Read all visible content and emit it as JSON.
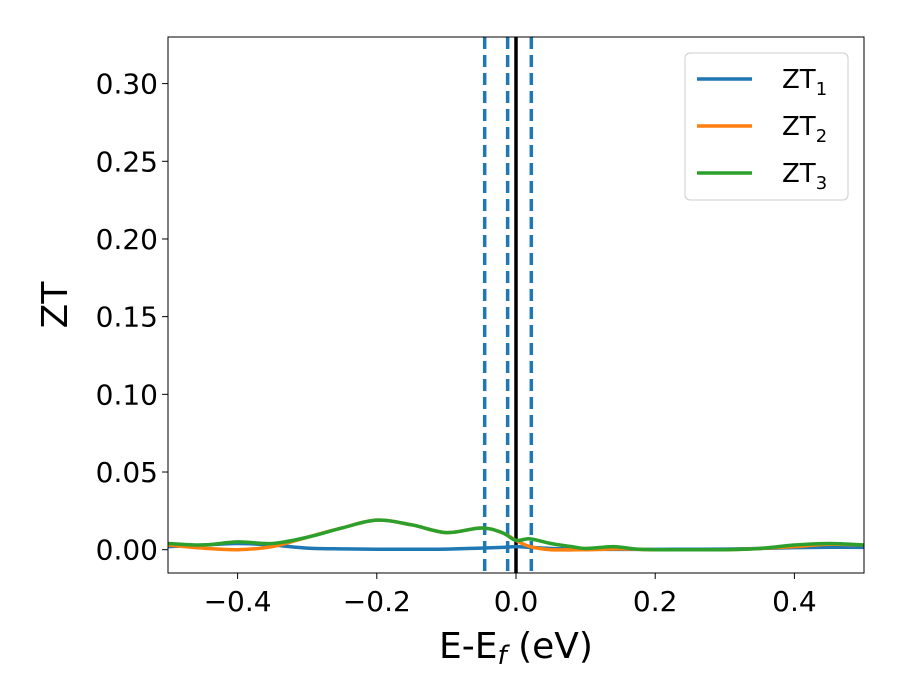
{
  "chart_data": {
    "type": "line",
    "title": "",
    "xlabel": {
      "main": "E-E",
      "sub": "f",
      "tail": " (eV)"
    },
    "ylabel": "ZT",
    "xlim": [
      -0.5,
      0.5
    ],
    "ylim": [
      -0.015,
      0.33
    ],
    "xticks": [
      -0.4,
      -0.2,
      0.0,
      0.2,
      0.4
    ],
    "xtick_labels": [
      "−0.4",
      "−0.2",
      "0.0",
      "0.2",
      "0.4"
    ],
    "yticks": [
      0.0,
      0.05,
      0.1,
      0.15,
      0.2,
      0.25,
      0.3
    ],
    "ytick_labels": [
      "0.00",
      "0.05",
      "0.10",
      "0.15",
      "0.20",
      "0.25",
      "0.30"
    ],
    "grid": false,
    "legend_position": "top-right",
    "series": [
      {
        "name": "ZT",
        "sub": "1",
        "color": "#1f77b4",
        "x": [
          -0.5,
          -0.45,
          -0.4,
          -0.35,
          -0.3,
          -0.25,
          -0.2,
          -0.15,
          -0.1,
          -0.05,
          -0.02,
          0.0,
          0.02,
          0.05,
          0.1,
          0.15,
          0.2,
          0.25,
          0.3,
          0.35,
          0.4,
          0.45,
          0.5
        ],
        "y": [
          0.002,
          0.003,
          0.004,
          0.003,
          0.001,
          0.0005,
          0.0003,
          0.0003,
          0.0004,
          0.001,
          0.0015,
          0.002,
          0.0015,
          0.0008,
          0.0003,
          0.0002,
          0.0002,
          0.0003,
          0.0004,
          0.0008,
          0.0013,
          0.0016,
          0.0015
        ]
      },
      {
        "name": "ZT",
        "sub": "2",
        "color": "#ff7f0e",
        "x": [
          -0.5,
          -0.45,
          -0.4,
          -0.35,
          -0.3,
          -0.25,
          -0.2,
          -0.15,
          -0.1,
          -0.05,
          -0.02,
          0.0,
          0.02,
          0.05,
          0.1,
          0.15,
          0.2,
          0.25,
          0.3,
          0.35,
          0.4,
          0.45,
          0.5
        ],
        "y": [
          0.003,
          0.001,
          0.0,
          0.002,
          0.008,
          0.014,
          0.019,
          0.016,
          0.011,
          0.014,
          0.011,
          0.006,
          0.002,
          0.0,
          0.0,
          0.0005,
          0.0,
          0.0,
          0.0,
          0.0008,
          0.002,
          0.0035,
          0.003
        ]
      },
      {
        "name": "ZT",
        "sub": "3",
        "color": "#2ca02c",
        "x": [
          -0.5,
          -0.45,
          -0.4,
          -0.35,
          -0.3,
          -0.25,
          -0.2,
          -0.15,
          -0.1,
          -0.05,
          -0.02,
          0.0,
          0.02,
          0.05,
          0.08,
          0.1,
          0.14,
          0.17,
          0.2,
          0.25,
          0.3,
          0.35,
          0.4,
          0.45,
          0.5
        ],
        "y": [
          0.004,
          0.003,
          0.005,
          0.004,
          0.008,
          0.014,
          0.019,
          0.016,
          0.011,
          0.014,
          0.011,
          0.006,
          0.007,
          0.004,
          0.002,
          0.0008,
          0.002,
          0.0005,
          0.0,
          0.0,
          0.0,
          0.0008,
          0.003,
          0.004,
          0.003
        ]
      }
    ],
    "vertical_lines": [
      {
        "x": -0.045,
        "style": "dashed",
        "color": "#1f77b4"
      },
      {
        "x": -0.012,
        "style": "dashed",
        "color": "#1f77b4"
      },
      {
        "x": 0.0,
        "style": "solid",
        "color": "#000000"
      },
      {
        "x": 0.022,
        "style": "dashed",
        "color": "#1f77b4"
      }
    ]
  }
}
